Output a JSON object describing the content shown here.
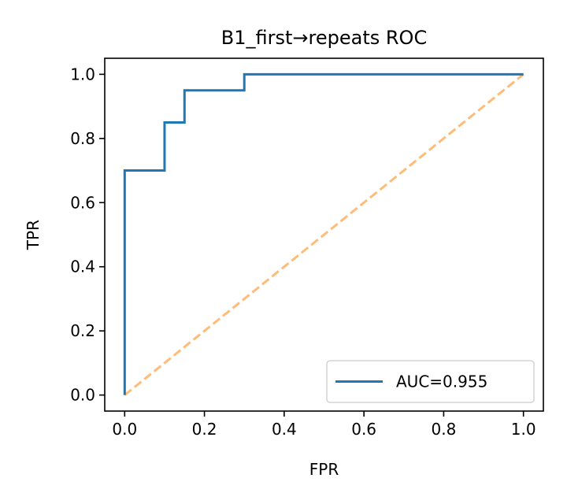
{
  "chart_data": {
    "type": "line",
    "title": "B1_first→repeats ROC",
    "xlabel": "FPR",
    "ylabel": "TPR",
    "xlim": [
      -0.05,
      1.05
    ],
    "ylim": [
      -0.05,
      1.05
    ],
    "xticks": [
      "0.0",
      "0.2",
      "0.4",
      "0.6",
      "0.8",
      "1.0"
    ],
    "yticks": [
      "0.0",
      "0.2",
      "0.4",
      "0.6",
      "0.8",
      "1.0"
    ],
    "grid": false,
    "legend_position": "lower-right",
    "series": [
      {
        "name": "AUC=0.955",
        "style": "solid",
        "color": "#1f77b4",
        "x": [
          0.0,
          0.0,
          0.1,
          0.1,
          0.15,
          0.15,
          0.3,
          0.3,
          1.0
        ],
        "y": [
          0.0,
          0.7,
          0.7,
          0.85,
          0.85,
          0.95,
          0.95,
          1.0,
          1.0
        ]
      },
      {
        "style": "dashed",
        "color": "#ffbb78",
        "x": [
          0.0,
          1.0
        ],
        "y": [
          0.0,
          1.0
        ]
      }
    ]
  }
}
